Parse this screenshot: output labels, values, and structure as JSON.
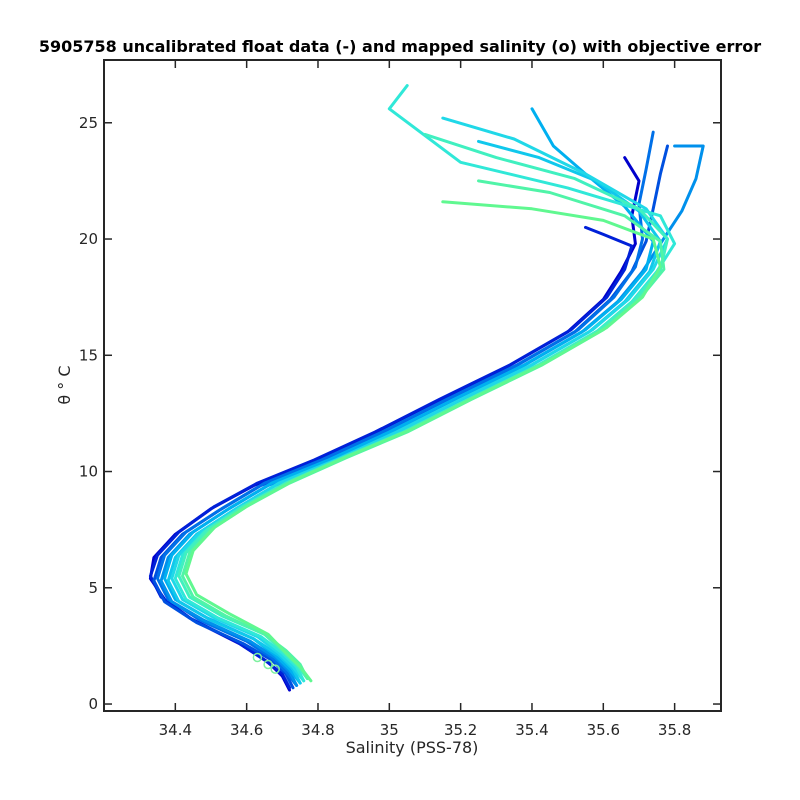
{
  "chart_data": {
    "type": "line",
    "title": "5905758 uncalibrated float data (-) and mapped salinity (o) with objective error",
    "xlabel": "Salinity (PSS-78)",
    "ylabel": "θ ° C",
    "xlim": [
      34.2,
      35.93
    ],
    "ylim": [
      -0.3,
      27.7
    ],
    "xticks": [
      34.4,
      34.6,
      34.8,
      35,
      35.2,
      35.4,
      35.6,
      35.8
    ],
    "xtick_labels": [
      "34.4",
      "34.6",
      "34.8",
      "35",
      "35.2",
      "35.4",
      "35.6",
      "35.8"
    ],
    "yticks": [
      0,
      5,
      10,
      15,
      20,
      25
    ],
    "ytick_labels": [
      "0",
      "5",
      "10",
      "15",
      "20",
      "25"
    ],
    "grid": false,
    "legend": "none",
    "colormap": [
      "#0000cc",
      "#0050e0",
      "#00a0f0",
      "#20d8e8",
      "#40f0c0",
      "#60f890"
    ],
    "series": [
      {
        "color": "#0000cc",
        "points": [
          [
            34.72,
            0.6
          ],
          [
            34.7,
            1.2
          ],
          [
            34.66,
            1.8
          ],
          [
            34.58,
            2.6
          ],
          [
            34.45,
            3.6
          ],
          [
            34.37,
            4.5
          ],
          [
            34.33,
            5.4
          ],
          [
            34.34,
            6.3
          ],
          [
            34.4,
            7.3
          ],
          [
            34.5,
            8.4
          ],
          [
            34.62,
            9.4
          ],
          [
            34.78,
            10.4
          ],
          [
            34.95,
            11.6
          ],
          [
            35.13,
            13.0
          ],
          [
            35.33,
            14.5
          ],
          [
            35.5,
            16.0
          ],
          [
            35.6,
            17.4
          ],
          [
            35.65,
            18.6
          ],
          [
            35.69,
            19.8
          ],
          [
            35.68,
            21.0
          ],
          [
            35.7,
            22.5
          ],
          [
            35.66,
            23.5
          ]
        ]
      },
      {
        "color": "#0020d8",
        "points": [
          [
            34.72,
            0.7
          ],
          [
            34.7,
            1.3
          ],
          [
            34.65,
            1.9
          ],
          [
            34.57,
            2.7
          ],
          [
            34.44,
            3.7
          ],
          [
            34.36,
            4.6
          ],
          [
            34.33,
            5.5
          ],
          [
            34.35,
            6.4
          ],
          [
            34.41,
            7.4
          ],
          [
            34.51,
            8.5
          ],
          [
            34.63,
            9.5
          ],
          [
            34.79,
            10.5
          ],
          [
            34.96,
            11.7
          ],
          [
            35.14,
            13.1
          ],
          [
            35.34,
            14.6
          ],
          [
            35.51,
            16.1
          ],
          [
            35.61,
            17.5
          ],
          [
            35.66,
            18.7
          ],
          [
            35.68,
            19.7
          ],
          [
            35.6,
            20.2
          ],
          [
            35.55,
            20.5
          ]
        ]
      },
      {
        "color": "#0050e0",
        "points": [
          [
            34.73,
            0.7
          ],
          [
            34.71,
            1.3
          ],
          [
            34.67,
            1.9
          ],
          [
            34.59,
            2.6
          ],
          [
            34.46,
            3.5
          ],
          [
            34.37,
            4.4
          ],
          [
            34.34,
            5.3
          ],
          [
            34.36,
            6.3
          ],
          [
            34.42,
            7.3
          ],
          [
            34.52,
            8.3
          ],
          [
            34.64,
            9.4
          ],
          [
            34.8,
            10.4
          ],
          [
            34.97,
            11.6
          ],
          [
            35.15,
            13.0
          ],
          [
            35.35,
            14.5
          ],
          [
            35.52,
            16.0
          ],
          [
            35.62,
            17.4
          ],
          [
            35.68,
            18.6
          ],
          [
            35.72,
            19.9
          ],
          [
            35.74,
            21.3
          ],
          [
            35.76,
            22.8
          ],
          [
            35.78,
            24.0
          ]
        ]
      },
      {
        "color": "#0070e8",
        "points": [
          [
            34.74,
            0.8
          ],
          [
            34.71,
            1.4
          ],
          [
            34.67,
            2.0
          ],
          [
            34.6,
            2.7
          ],
          [
            34.47,
            3.6
          ],
          [
            34.38,
            4.5
          ],
          [
            34.35,
            5.4
          ],
          [
            34.37,
            6.4
          ],
          [
            34.43,
            7.4
          ],
          [
            34.53,
            8.4
          ],
          [
            34.65,
            9.5
          ],
          [
            34.81,
            10.5
          ],
          [
            34.98,
            11.7
          ],
          [
            35.16,
            13.1
          ],
          [
            35.36,
            14.6
          ],
          [
            35.53,
            16.1
          ],
          [
            35.63,
            17.5
          ],
          [
            35.69,
            18.8
          ],
          [
            35.71,
            20.0
          ],
          [
            35.7,
            21.5
          ],
          [
            35.72,
            23.0
          ],
          [
            35.74,
            24.6
          ]
        ]
      },
      {
        "color": "#0090ec",
        "points": [
          [
            34.74,
            0.8
          ],
          [
            34.72,
            1.4
          ],
          [
            34.68,
            2.0
          ],
          [
            34.61,
            2.7
          ],
          [
            34.48,
            3.6
          ],
          [
            34.39,
            4.4
          ],
          [
            34.36,
            5.3
          ],
          [
            34.38,
            6.3
          ],
          [
            34.44,
            7.3
          ],
          [
            34.54,
            8.3
          ],
          [
            34.66,
            9.4
          ],
          [
            34.82,
            10.4
          ],
          [
            34.99,
            11.6
          ],
          [
            35.17,
            13.0
          ],
          [
            35.37,
            14.5
          ],
          [
            35.54,
            16.0
          ],
          [
            35.64,
            17.3
          ],
          [
            35.71,
            18.6
          ],
          [
            35.76,
            19.8
          ],
          [
            35.82,
            21.2
          ],
          [
            35.86,
            22.6
          ],
          [
            35.88,
            24.0
          ],
          [
            35.8,
            24.0
          ]
        ]
      },
      {
        "color": "#00b0f0",
        "points": [
          [
            34.75,
            0.9
          ],
          [
            34.72,
            1.5
          ],
          [
            34.68,
            2.1
          ],
          [
            34.62,
            2.8
          ],
          [
            34.49,
            3.7
          ],
          [
            34.4,
            4.5
          ],
          [
            34.37,
            5.4
          ],
          [
            34.39,
            6.4
          ],
          [
            34.45,
            7.4
          ],
          [
            34.55,
            8.4
          ],
          [
            34.67,
            9.5
          ],
          [
            34.83,
            10.5
          ],
          [
            35.0,
            11.7
          ],
          [
            35.18,
            13.1
          ],
          [
            35.38,
            14.6
          ],
          [
            35.55,
            16.1
          ],
          [
            35.65,
            17.4
          ],
          [
            35.72,
            18.7
          ],
          [
            35.74,
            19.9
          ],
          [
            35.66,
            21.4
          ],
          [
            35.55,
            22.8
          ],
          [
            35.46,
            24.0
          ],
          [
            35.4,
            25.6
          ]
        ]
      },
      {
        "color": "#10c8ec",
        "points": [
          [
            34.75,
            0.9
          ],
          [
            34.73,
            1.5
          ],
          [
            34.69,
            2.1
          ],
          [
            34.62,
            2.8
          ],
          [
            34.5,
            3.6
          ],
          [
            34.41,
            4.4
          ],
          [
            34.38,
            5.3
          ],
          [
            34.4,
            6.3
          ],
          [
            34.46,
            7.3
          ],
          [
            34.56,
            8.3
          ],
          [
            34.68,
            9.4
          ],
          [
            34.84,
            10.4
          ],
          [
            35.01,
            11.6
          ],
          [
            35.19,
            13.0
          ],
          [
            35.39,
            14.5
          ],
          [
            35.56,
            16.0
          ],
          [
            35.66,
            17.3
          ],
          [
            35.73,
            18.6
          ],
          [
            35.76,
            19.9
          ],
          [
            35.7,
            21.2
          ],
          [
            35.58,
            22.5
          ],
          [
            35.42,
            23.5
          ],
          [
            35.25,
            24.2
          ]
        ]
      },
      {
        "color": "#20d8e8",
        "points": [
          [
            34.76,
            1.0
          ],
          [
            34.73,
            1.6
          ],
          [
            34.69,
            2.2
          ],
          [
            34.63,
            2.9
          ],
          [
            34.51,
            3.7
          ],
          [
            34.42,
            4.5
          ],
          [
            34.39,
            5.4
          ],
          [
            34.41,
            6.4
          ],
          [
            34.47,
            7.4
          ],
          [
            34.57,
            8.4
          ],
          [
            34.69,
            9.5
          ],
          [
            34.85,
            10.5
          ],
          [
            35.02,
            11.7
          ],
          [
            35.2,
            13.1
          ],
          [
            35.4,
            14.6
          ],
          [
            35.57,
            16.1
          ],
          [
            35.67,
            17.4
          ],
          [
            35.74,
            18.7
          ],
          [
            35.78,
            20.0
          ],
          [
            35.72,
            21.3
          ],
          [
            35.55,
            22.8
          ],
          [
            35.35,
            24.3
          ],
          [
            35.15,
            25.2
          ]
        ]
      },
      {
        "color": "#30e8d8",
        "points": [
          [
            34.76,
            1.0
          ],
          [
            34.74,
            1.6
          ],
          [
            34.7,
            2.2
          ],
          [
            34.64,
            2.9
          ],
          [
            34.52,
            3.7
          ],
          [
            34.43,
            4.5
          ],
          [
            34.4,
            5.4
          ],
          [
            34.42,
            6.4
          ],
          [
            34.48,
            7.4
          ],
          [
            34.58,
            8.4
          ],
          [
            34.7,
            9.4
          ],
          [
            34.86,
            10.5
          ],
          [
            35.03,
            11.6
          ],
          [
            35.21,
            13.0
          ],
          [
            35.41,
            14.5
          ],
          [
            35.58,
            16.0
          ],
          [
            35.68,
            17.3
          ],
          [
            35.75,
            18.6
          ],
          [
            35.8,
            19.8
          ],
          [
            35.76,
            21.0
          ],
          [
            35.5,
            22.2
          ],
          [
            35.2,
            23.3
          ],
          [
            35.0,
            25.6
          ],
          [
            35.05,
            26.6
          ]
        ]
      },
      {
        "color": "#40f0c0",
        "points": [
          [
            34.77,
            1.1
          ],
          [
            34.74,
            1.7
          ],
          [
            34.7,
            2.3
          ],
          [
            34.65,
            3.0
          ],
          [
            34.53,
            3.8
          ],
          [
            34.44,
            4.6
          ],
          [
            34.41,
            5.5
          ],
          [
            34.43,
            6.5
          ],
          [
            34.49,
            7.5
          ],
          [
            34.59,
            8.5
          ],
          [
            34.71,
            9.5
          ],
          [
            34.87,
            10.6
          ],
          [
            35.04,
            11.7
          ],
          [
            35.22,
            13.1
          ],
          [
            35.42,
            14.6
          ],
          [
            35.59,
            16.1
          ],
          [
            35.69,
            17.4
          ],
          [
            35.76,
            18.7
          ],
          [
            35.78,
            20.0
          ],
          [
            35.7,
            21.3
          ],
          [
            35.52,
            22.6
          ],
          [
            35.3,
            23.5
          ],
          [
            35.1,
            24.5
          ]
        ]
      },
      {
        "color": "#50f4a8",
        "points": [
          [
            34.77,
            1.1
          ],
          [
            34.75,
            1.7
          ],
          [
            34.71,
            2.3
          ],
          [
            34.65,
            3.0
          ],
          [
            34.54,
            3.8
          ],
          [
            34.45,
            4.6
          ],
          [
            34.42,
            5.5
          ],
          [
            34.44,
            6.5
          ],
          [
            34.5,
            7.5
          ],
          [
            34.6,
            8.5
          ],
          [
            34.72,
            9.5
          ],
          [
            34.88,
            10.6
          ],
          [
            35.05,
            11.7
          ],
          [
            35.23,
            13.1
          ],
          [
            35.43,
            14.6
          ],
          [
            35.6,
            16.1
          ],
          [
            35.7,
            17.4
          ],
          [
            35.77,
            18.7
          ],
          [
            35.76,
            19.9
          ],
          [
            35.66,
            21.0
          ],
          [
            35.45,
            22.0
          ],
          [
            35.25,
            22.5
          ]
        ]
      },
      {
        "color": "#60f890",
        "points": [
          [
            34.78,
            1.0
          ],
          [
            34.75,
            1.6
          ],
          [
            34.71,
            2.2
          ],
          [
            34.66,
            3.0
          ],
          [
            34.55,
            3.9
          ],
          [
            34.46,
            4.7
          ],
          [
            34.43,
            5.6
          ],
          [
            34.45,
            6.6
          ],
          [
            34.51,
            7.6
          ],
          [
            34.61,
            8.6
          ],
          [
            34.73,
            9.6
          ],
          [
            34.89,
            10.7
          ],
          [
            35.06,
            11.8
          ],
          [
            35.24,
            13.2
          ],
          [
            35.44,
            14.7
          ],
          [
            35.61,
            16.2
          ],
          [
            35.71,
            17.5
          ],
          [
            35.76,
            18.8
          ],
          [
            35.74,
            20.0
          ],
          [
            35.6,
            20.8
          ],
          [
            35.4,
            21.3
          ],
          [
            35.15,
            21.6
          ]
        ]
      }
    ],
    "markers": [
      {
        "x": 34.63,
        "y": 2.0
      },
      {
        "x": 34.66,
        "y": 1.7
      },
      {
        "x": 34.68,
        "y": 1.5
      }
    ]
  }
}
